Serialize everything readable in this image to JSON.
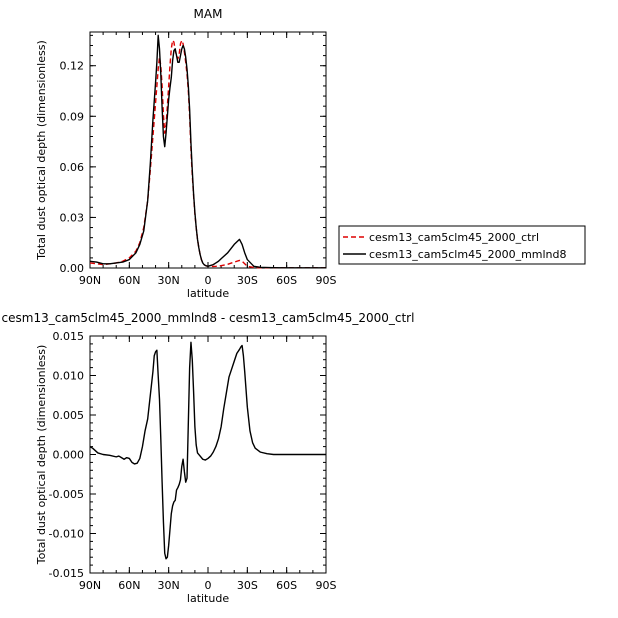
{
  "chart_data": [
    {
      "type": "line",
      "title": "MAM",
      "xlabel": "latitude",
      "ylabel": "Total dust optical depth (dimensionless)",
      "xlim": [
        90,
        -90
      ],
      "ylim": [
        0,
        0.14
      ],
      "x_ticks": [
        90,
        60,
        30,
        0,
        -30,
        -60,
        -90
      ],
      "x_tick_labels": [
        "90N",
        "60N",
        "30N",
        "0",
        "30S",
        "60S",
        "90S"
      ],
      "y_ticks": [
        0,
        0.03,
        0.06,
        0.09,
        0.12
      ],
      "y_tick_labels": [
        "0.00",
        "0.03",
        "0.06",
        "0.09",
        "0.12"
      ],
      "legend": {
        "placement": "right"
      },
      "series": [
        {
          "name": "cesm13_cam5clm45_2000_ctrl",
          "color": "#dd0000",
          "dash": "dashed",
          "x": [
            90,
            85,
            80,
            75,
            70,
            65,
            60,
            55,
            52,
            49,
            46,
            44,
            42,
            40,
            39,
            38,
            37,
            36,
            35,
            34,
            33,
            32,
            31,
            30,
            29,
            28,
            27,
            26,
            25,
            24,
            23,
            22,
            21,
            20,
            19,
            18,
            17,
            16,
            15,
            14,
            13,
            12,
            11,
            10,
            9,
            8,
            7,
            6,
            5,
            4,
            3,
            2,
            1,
            0,
            -2,
            -4,
            -6,
            -8,
            -10,
            -15,
            -20,
            -22,
            -24,
            -26,
            -28,
            -30,
            -35,
            -40,
            -50,
            -60,
            -70,
            -80,
            -90
          ],
          "y": [
            0.003,
            0.0025,
            0.002,
            0.0025,
            0.003,
            0.004,
            0.006,
            0.01,
            0.015,
            0.024,
            0.04,
            0.058,
            0.078,
            0.098,
            0.108,
            0.118,
            0.125,
            0.12,
            0.108,
            0.091,
            0.08,
            0.085,
            0.096,
            0.108,
            0.12,
            0.13,
            0.135,
            0.134,
            0.129,
            0.126,
            0.124,
            0.127,
            0.133,
            0.135,
            0.133,
            0.128,
            0.122,
            0.115,
            0.105,
            0.09,
            0.07,
            0.055,
            0.043,
            0.032,
            0.024,
            0.017,
            0.012,
            0.008,
            0.005,
            0.003,
            0.002,
            0.0015,
            0.0012,
            0.001,
            0.0009,
            0.0009,
            0.001,
            0.0012,
            0.0014,
            0.0022,
            0.0035,
            0.004,
            0.0045,
            0.004,
            0.0025,
            0.001,
            0.0003,
            0.0001,
            0.0001,
            0.0001,
            0.0001,
            0.0001,
            0.0001
          ]
        },
        {
          "name": "cesm13_cam5clm45_2000_mmlnd8",
          "color": "#000000",
          "dash": "solid",
          "x": [
            90,
            85,
            80,
            75,
            70,
            65,
            60,
            55,
            52,
            49,
            46,
            44,
            42,
            40,
            39,
            38,
            37,
            36,
            35,
            34,
            33,
            32,
            31,
            30,
            29,
            28,
            27,
            26,
            25,
            24,
            23,
            22,
            21,
            20,
            19,
            18,
            17,
            16,
            15,
            14,
            13,
            12,
            11,
            10,
            9,
            8,
            7,
            6,
            5,
            4,
            3,
            2,
            1,
            0,
            -2,
            -4,
            -6,
            -8,
            -10,
            -15,
            -20,
            -22,
            -24,
            -26,
            -28,
            -30,
            -35,
            -40,
            -50,
            -60,
            -70,
            -80,
            -90
          ],
          "y": [
            0.004,
            0.0035,
            0.0025,
            0.0025,
            0.003,
            0.0035,
            0.005,
            0.009,
            0.014,
            0.022,
            0.04,
            0.062,
            0.088,
            0.11,
            0.122,
            0.138,
            0.13,
            0.115,
            0.095,
            0.078,
            0.072,
            0.08,
            0.09,
            0.1,
            0.107,
            0.113,
            0.123,
            0.129,
            0.13,
            0.126,
            0.122,
            0.122,
            0.126,
            0.13,
            0.132,
            0.13,
            0.125,
            0.118,
            0.108,
            0.094,
            0.074,
            0.058,
            0.044,
            0.033,
            0.024,
            0.017,
            0.012,
            0.008,
            0.005,
            0.003,
            0.002,
            0.0015,
            0.0012,
            0.001,
            0.0015,
            0.002,
            0.003,
            0.004,
            0.0055,
            0.009,
            0.014,
            0.0155,
            0.017,
            0.014,
            0.009,
            0.005,
            0.001,
            0.0004,
            0.0002,
            0.0001,
            0.0001,
            0.0001,
            0.0001
          ]
        }
      ]
    },
    {
      "type": "line",
      "title": "cesm13_cam5clm45_2000_mmlnd8 - cesm13_cam5clm45_2000_ctrl",
      "xlabel": "latitude",
      "ylabel": "Total dust optical depth (dimensionless)",
      "xlim": [
        90,
        -90
      ],
      "ylim": [
        -0.015,
        0.015
      ],
      "x_ticks": [
        90,
        60,
        30,
        0,
        -30,
        -60,
        -90
      ],
      "x_tick_labels": [
        "90N",
        "60N",
        "30N",
        "0",
        "30S",
        "60S",
        "90S"
      ],
      "y_ticks": [
        -0.015,
        -0.01,
        -0.005,
        0,
        0.005,
        0.01,
        0.015
      ],
      "y_tick_labels": [
        "-0.015",
        "-0.010",
        "-0.005",
        "0.000",
        "0.005",
        "0.010",
        "0.015"
      ],
      "series": [
        {
          "name": "",
          "color": "#000000",
          "dash": "solid",
          "x": [
            90,
            88,
            86,
            84,
            80,
            75,
            70,
            68,
            66,
            64,
            62,
            60,
            58,
            56,
            54,
            52,
            50,
            48,
            46,
            44,
            42,
            41,
            40,
            39,
            38,
            37,
            36,
            35,
            34,
            33,
            32,
            31,
            30,
            29,
            28,
            27,
            26,
            25,
            24,
            23,
            22,
            21,
            20,
            19,
            18,
            17,
            16,
            15,
            14,
            13,
            12,
            11,
            10,
            9,
            8,
            6,
            4,
            2,
            0,
            -2,
            -4,
            -6,
            -8,
            -10,
            -12,
            -14,
            -16,
            -18,
            -20,
            -22,
            -24,
            -25,
            -26,
            -27,
            -28,
            -30,
            -32,
            -34,
            -36,
            -40,
            -45,
            -50,
            -55,
            -60,
            -70,
            -80,
            -90
          ],
          "y": [
            0.001,
            0.0008,
            0.0005,
            0.0002,
            0.0,
            -0.0001,
            -0.0003,
            -0.0002,
            -0.0004,
            -0.0006,
            -0.0004,
            -0.0005,
            -0.001,
            -0.0012,
            -0.0011,
            -0.0005,
            0.001,
            0.003,
            0.0045,
            0.0075,
            0.0105,
            0.0125,
            0.013,
            0.0132,
            0.01,
            0.007,
            0.002,
            -0.0035,
            -0.0085,
            -0.0125,
            -0.0132,
            -0.013,
            -0.0115,
            -0.0095,
            -0.0075,
            -0.0065,
            -0.006,
            -0.0058,
            -0.0045,
            -0.0042,
            -0.0038,
            -0.0032,
            -0.0015,
            -0.0006,
            -0.0022,
            -0.0035,
            -0.003,
            0.004,
            0.011,
            0.0142,
            0.012,
            0.008,
            0.0035,
            0.0012,
            0.0002,
            -0.0002,
            -0.0006,
            -0.0007,
            -0.0005,
            -0.0002,
            0.0003,
            0.001,
            0.002,
            0.0035,
            0.0058,
            0.0078,
            0.0098,
            0.0108,
            0.0118,
            0.0128,
            0.0133,
            0.0136,
            0.0138,
            0.0125,
            0.0105,
            0.006,
            0.003,
            0.0015,
            0.0008,
            0.0003,
            0.0001,
            0.0,
            0.0,
            0.0,
            0.0,
            0.0,
            0.0
          ]
        }
      ]
    }
  ]
}
